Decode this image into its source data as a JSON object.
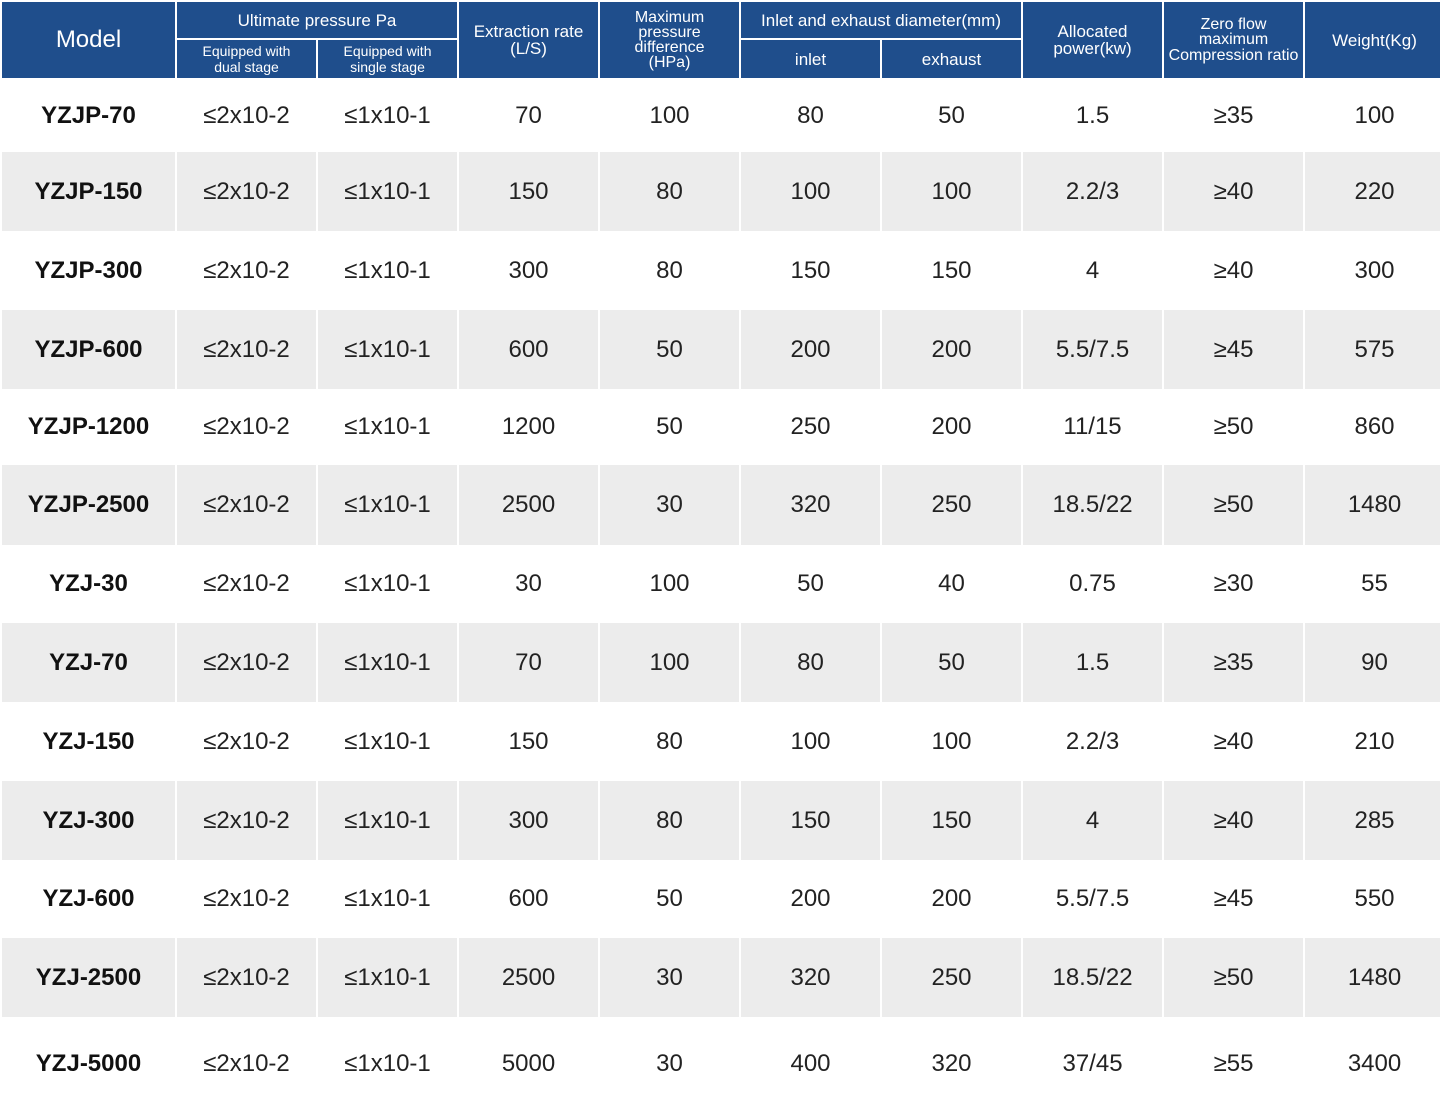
{
  "header": {
    "model": "Model",
    "ultimate_pressure": "Ultimate pressure Pa",
    "dual_stage": "Equipped with\ndual stage",
    "single_stage": "Equipped with\nsingle stage",
    "extraction_rate": "Extraction rate\n(L/S)",
    "max_pressure_diff": "Maximum\npressure\ndifference\n(HPa)",
    "diameter": "Inlet and exhaust diameter(mm)",
    "inlet": "inlet",
    "exhaust": "exhaust",
    "power": "Allocated\npower(kw)",
    "compression": "Zero flow\nmaximum\nCompression ratio",
    "weight": "Weight(Kg)"
  },
  "rows": [
    {
      "model": "YZJP-70",
      "dual": "≤2x10-2",
      "single": "≤1x10-1",
      "rate": "70",
      "diff": "100",
      "inlet": "80",
      "exhaust": "50",
      "power": "1.5",
      "ratio": "≥35",
      "weight": "100"
    },
    {
      "model": "YZJP-150",
      "dual": "≤2x10-2",
      "single": "≤1x10-1",
      "rate": "150",
      "diff": "80",
      "inlet": "100",
      "exhaust": "100",
      "power": "2.2/3",
      "ratio": "≥40",
      "weight": "220"
    },
    {
      "model": "YZJP-300",
      "dual": "≤2x10-2",
      "single": "≤1x10-1",
      "rate": "300",
      "diff": "80",
      "inlet": "150",
      "exhaust": "150",
      "power": "4",
      "ratio": "≥40",
      "weight": "300"
    },
    {
      "model": "YZJP-600",
      "dual": "≤2x10-2",
      "single": "≤1x10-1",
      "rate": "600",
      "diff": "50",
      "inlet": "200",
      "exhaust": "200",
      "power": "5.5/7.5",
      "ratio": "≥45",
      "weight": "575"
    },
    {
      "model": "YZJP-1200",
      "dual": "≤2x10-2",
      "single": "≤1x10-1",
      "rate": "1200",
      "diff": "50",
      "inlet": "250",
      "exhaust": "200",
      "power": "11/15",
      "ratio": "≥50",
      "weight": "860"
    },
    {
      "model": "YZJP-2500",
      "dual": "≤2x10-2",
      "single": "≤1x10-1",
      "rate": "2500",
      "diff": "30",
      "inlet": "320",
      "exhaust": "250",
      "power": "18.5/22",
      "ratio": "≥50",
      "weight": "1480"
    },
    {
      "model": "YZJ-30",
      "dual": "≤2x10-2",
      "single": "≤1x10-1",
      "rate": "30",
      "diff": "100",
      "inlet": "50",
      "exhaust": "40",
      "power": "0.75",
      "ratio": "≥30",
      "weight": "55"
    },
    {
      "model": "YZJ-70",
      "dual": "≤2x10-2",
      "single": "≤1x10-1",
      "rate": "70",
      "diff": "100",
      "inlet": "80",
      "exhaust": "50",
      "power": "1.5",
      "ratio": "≥35",
      "weight": "90"
    },
    {
      "model": "YZJ-150",
      "dual": "≤2x10-2",
      "single": "≤1x10-1",
      "rate": "150",
      "diff": "80",
      "inlet": "100",
      "exhaust": "100",
      "power": "2.2/3",
      "ratio": "≥40",
      "weight": "210"
    },
    {
      "model": "YZJ-300",
      "dual": "≤2x10-2",
      "single": "≤1x10-1",
      "rate": "300",
      "diff": "80",
      "inlet": "150",
      "exhaust": "150",
      "power": "4",
      "ratio": "≥40",
      "weight": "285"
    },
    {
      "model": "YZJ-600",
      "dual": "≤2x10-2",
      "single": "≤1x10-1",
      "rate": "600",
      "diff": "50",
      "inlet": "200",
      "exhaust": "200",
      "power": "5.5/7.5",
      "ratio": "≥45",
      "weight": "550"
    },
    {
      "model": "YZJ-2500",
      "dual": "≤2x10-2",
      "single": "≤1x10-1",
      "rate": "2500",
      "diff": "30",
      "inlet": "320",
      "exhaust": "250",
      "power": "18.5/22",
      "ratio": "≥50",
      "weight": "1480"
    },
    {
      "model": "YZJ-5000",
      "dual": "≤2x10-2",
      "single": "≤1x10-1",
      "rate": "5000",
      "diff": "30",
      "inlet": "400",
      "exhaust": "320",
      "power": "37/45",
      "ratio": "≥55",
      "weight": "3400"
    }
  ]
}
